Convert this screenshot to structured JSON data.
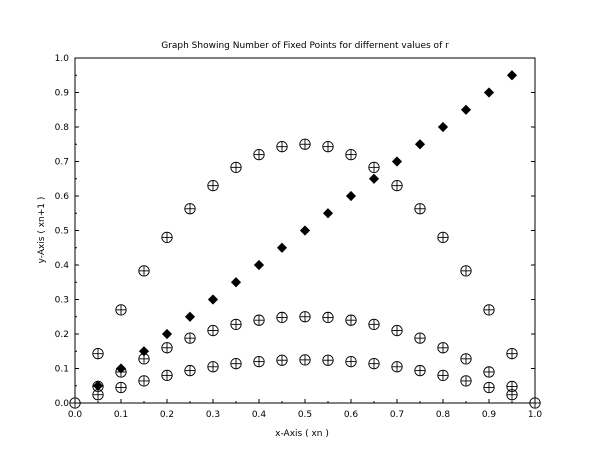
{
  "chart_data": {
    "type": "scatter",
    "title": "Graph Showing Number of Fixed Points for differnent values of r",
    "xlabel": "x-Axis ( xn )",
    "ylabel": "y-Axis ( xn+1 )",
    "xlim": [
      0.0,
      1.0
    ],
    "ylim": [
      0.0,
      1.0
    ],
    "xticks": [
      "0.0",
      "0.1",
      "0.2",
      "0.3",
      "0.4",
      "0.5",
      "0.6",
      "0.7",
      "0.8",
      "0.9",
      "1.0"
    ],
    "yticks": [
      "0.0",
      "0.1",
      "0.2",
      "0.3",
      "0.4",
      "0.5",
      "0.6",
      "0.7",
      "0.8",
      "0.9",
      "1.0"
    ],
    "grid": false,
    "legend": false,
    "series": [
      {
        "marker": "filled-diamond",
        "color": "#000000",
        "points": [
          [
            0.05,
            0.05
          ],
          [
            0.1,
            0.1
          ],
          [
            0.15,
            0.15
          ],
          [
            0.2,
            0.2
          ],
          [
            0.25,
            0.25
          ],
          [
            0.3,
            0.3
          ],
          [
            0.35,
            0.35
          ],
          [
            0.4,
            0.4
          ],
          [
            0.45,
            0.45
          ],
          [
            0.5,
            0.5
          ],
          [
            0.55,
            0.55
          ],
          [
            0.6,
            0.6
          ],
          [
            0.65,
            0.65
          ],
          [
            0.7,
            0.7
          ],
          [
            0.75,
            0.75
          ],
          [
            0.8,
            0.8
          ],
          [
            0.85,
            0.85
          ],
          [
            0.9,
            0.9
          ],
          [
            0.95,
            0.95
          ]
        ]
      },
      {
        "marker": "circle-plus",
        "color": "#000000",
        "points": [
          [
            0.05,
            0.143
          ],
          [
            0.1,
            0.27
          ],
          [
            0.15,
            0.383
          ],
          [
            0.2,
            0.48
          ],
          [
            0.25,
            0.563
          ],
          [
            0.3,
            0.63
          ],
          [
            0.35,
            0.683
          ],
          [
            0.4,
            0.72
          ],
          [
            0.45,
            0.743
          ],
          [
            0.5,
            0.75
          ],
          [
            0.55,
            0.743
          ],
          [
            0.6,
            0.72
          ],
          [
            0.65,
            0.683
          ],
          [
            0.7,
            0.63
          ],
          [
            0.75,
            0.563
          ],
          [
            0.8,
            0.48
          ],
          [
            0.85,
            0.383
          ],
          [
            0.9,
            0.27
          ],
          [
            0.95,
            0.143
          ]
        ]
      },
      {
        "marker": "circle-plus",
        "color": "#000000",
        "points": [
          [
            0.05,
            0.048
          ],
          [
            0.1,
            0.09
          ],
          [
            0.15,
            0.128
          ],
          [
            0.2,
            0.16
          ],
          [
            0.25,
            0.188
          ],
          [
            0.3,
            0.21
          ],
          [
            0.35,
            0.228
          ],
          [
            0.4,
            0.24
          ],
          [
            0.45,
            0.248
          ],
          [
            0.5,
            0.25
          ],
          [
            0.55,
            0.248
          ],
          [
            0.6,
            0.24
          ],
          [
            0.65,
            0.228
          ],
          [
            0.7,
            0.21
          ],
          [
            0.75,
            0.188
          ],
          [
            0.8,
            0.16
          ],
          [
            0.85,
            0.128
          ],
          [
            0.9,
            0.09
          ],
          [
            0.95,
            0.048
          ]
        ]
      },
      {
        "marker": "circle-plus",
        "color": "#000000",
        "points": [
          [
            0.0,
            0.0
          ],
          [
            0.05,
            0.024
          ],
          [
            0.1,
            0.045
          ],
          [
            0.15,
            0.064
          ],
          [
            0.2,
            0.08
          ],
          [
            0.25,
            0.094
          ],
          [
            0.3,
            0.105
          ],
          [
            0.35,
            0.114
          ],
          [
            0.4,
            0.12
          ],
          [
            0.45,
            0.124
          ],
          [
            0.5,
            0.125
          ],
          [
            0.55,
            0.124
          ],
          [
            0.6,
            0.12
          ],
          [
            0.65,
            0.114
          ],
          [
            0.7,
            0.105
          ],
          [
            0.75,
            0.094
          ],
          [
            0.8,
            0.08
          ],
          [
            0.85,
            0.064
          ],
          [
            0.9,
            0.045
          ],
          [
            0.95,
            0.024
          ],
          [
            1.0,
            0.0
          ]
        ]
      }
    ]
  }
}
